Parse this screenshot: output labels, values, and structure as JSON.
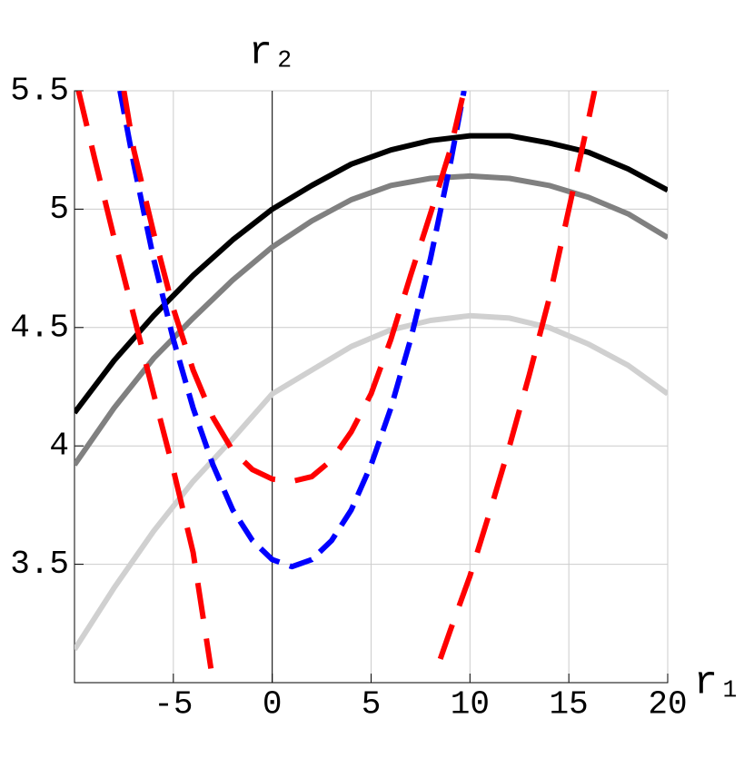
{
  "chart_data": {
    "type": "line",
    "x_label": "r₁",
    "y_label": "r₂",
    "xlim": [
      -10,
      20
    ],
    "xticks": [
      -5,
      0,
      5,
      10,
      15,
      20
    ],
    "ylim": [
      3,
      5.5
    ],
    "yticks": [
      3.5,
      4,
      4.5,
      5,
      5.5
    ],
    "grid": true,
    "series": [
      {
        "color": "#000000",
        "dash": "none",
        "x": [
          -10,
          -8,
          -6,
          -4,
          -2,
          0,
          2,
          4,
          6,
          8,
          10,
          12,
          14,
          16,
          18,
          20
        ],
        "values": [
          4.14,
          4.36,
          4.55,
          4.72,
          4.87,
          5.0,
          5.1,
          5.19,
          5.25,
          5.29,
          5.31,
          5.31,
          5.28,
          5.24,
          5.17,
          5.08
        ]
      },
      {
        "color": "#808080",
        "dash": "none",
        "x": [
          -10,
          -8,
          -6,
          -4,
          -2,
          0,
          2,
          4,
          6,
          8,
          10,
          12,
          14,
          16,
          18,
          20
        ],
        "values": [
          3.92,
          4.16,
          4.37,
          4.54,
          4.7,
          4.84,
          4.95,
          5.04,
          5.1,
          5.13,
          5.14,
          5.13,
          5.1,
          5.05,
          4.98,
          4.88
        ]
      },
      {
        "color": "#d0d0d0",
        "dash": "none",
        "x": [
          -10,
          -8,
          -6,
          -4,
          -2,
          0,
          2,
          4,
          6,
          8,
          10,
          12,
          14,
          16,
          18,
          20
        ],
        "values": [
          3.14,
          3.4,
          3.64,
          3.85,
          4.03,
          4.22,
          4.32,
          4.42,
          4.49,
          4.53,
          4.55,
          4.54,
          4.5,
          4.43,
          4.34,
          4.22
        ]
      },
      {
        "color": "#0000ff",
        "dash": "26 12",
        "x": [
          -7.7,
          -7,
          -6,
          -5,
          -4,
          -3,
          -2,
          -1,
          0,
          1,
          2,
          3,
          4,
          5,
          6,
          7,
          8,
          9,
          9.7
        ],
        "values": [
          5.5,
          5.19,
          4.79,
          4.45,
          4.16,
          3.92,
          3.73,
          3.6,
          3.52,
          3.49,
          3.52,
          3.6,
          3.73,
          3.92,
          4.16,
          4.45,
          4.79,
          5.19,
          5.5
        ]
      },
      {
        "color": "#ff0000",
        "dash": "40 22",
        "x": [
          -7.5,
          -7,
          -6,
          -5,
          -4,
          -3,
          -2,
          -1,
          0,
          1,
          2,
          3,
          4,
          5,
          6,
          7,
          8,
          9,
          9.7
        ],
        "values": [
          5.5,
          5.25,
          4.9,
          4.58,
          4.32,
          4.12,
          3.98,
          3.9,
          3.86,
          3.85,
          3.87,
          3.94,
          4.06,
          4.22,
          4.45,
          4.72,
          4.98,
          5.25,
          5.5
        ]
      },
      {
        "color": "#ff0000",
        "dash": "40 22",
        "x": [
          -9.8,
          -9,
          -8,
          -7,
          -6,
          -5,
          -4,
          -3.1,
          null,
          8.5,
          9,
          10,
          11,
          12,
          13,
          14,
          15,
          16,
          16.3
        ],
        "values": [
          5.5,
          5.22,
          4.88,
          4.55,
          4.22,
          3.9,
          3.55,
          3.06,
          null,
          3.1,
          3.22,
          3.45,
          3.72,
          4.0,
          4.3,
          4.62,
          5.0,
          5.38,
          5.5
        ]
      }
    ]
  }
}
